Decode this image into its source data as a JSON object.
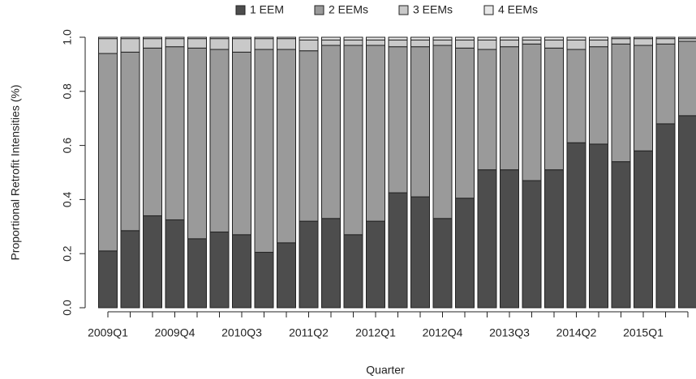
{
  "chart_data": {
    "type": "stacked-bar",
    "x_label": "Quarter",
    "y_label": "Proportional Retrofit Intensities (%)",
    "categories": [
      "2009Q1",
      null,
      null,
      "2009Q4",
      null,
      null,
      "2010Q3",
      null,
      null,
      "2011Q2",
      null,
      null,
      "2012Q1",
      null,
      null,
      "2012Q4",
      null,
      null,
      "2013Q3",
      null,
      null,
      "2014Q2",
      null,
      null,
      "2015Q1",
      null,
      null
    ],
    "series": [
      {
        "name": "1 EEM",
        "color": "#4d4d4d",
        "values": [
          0.21,
          0.285,
          0.34,
          0.325,
          0.255,
          0.28,
          0.27,
          0.205,
          0.24,
          0.32,
          0.33,
          0.27,
          0.32,
          0.425,
          0.41,
          0.33,
          0.405,
          0.51,
          0.51,
          0.47,
          0.51,
          0.61,
          0.605,
          0.54,
          0.58,
          0.68,
          0.71
        ]
      },
      {
        "name": "2 EEMs",
        "color": "#9a9a9a",
        "values": [
          0.73,
          0.66,
          0.62,
          0.64,
          0.705,
          0.675,
          0.675,
          0.75,
          0.715,
          0.63,
          0.64,
          0.7,
          0.65,
          0.54,
          0.555,
          0.64,
          0.555,
          0.445,
          0.455,
          0.505,
          0.45,
          0.345,
          0.36,
          0.435,
          0.39,
          0.295,
          0.275
        ]
      },
      {
        "name": "3 EEMs",
        "color": "#c9c9c9",
        "values": [
          0.055,
          0.05,
          0.035,
          0.03,
          0.035,
          0.04,
          0.05,
          0.04,
          0.04,
          0.04,
          0.02,
          0.02,
          0.02,
          0.025,
          0.025,
          0.02,
          0.03,
          0.035,
          0.025,
          0.015,
          0.03,
          0.035,
          0.025,
          0.02,
          0.025,
          0.02,
          0.01
        ]
      },
      {
        "name": "4 EEMs",
        "color": "#e8e8e8",
        "values": [
          0.005,
          0.005,
          0.005,
          0.005,
          0.005,
          0.005,
          0.005,
          0.005,
          0.005,
          0.01,
          0.01,
          0.01,
          0.01,
          0.01,
          0.01,
          0.01,
          0.01,
          0.01,
          0.01,
          0.01,
          0.01,
          0.01,
          0.01,
          0.005,
          0.005,
          0.005,
          0.005
        ]
      }
    ],
    "ylim": [
      0,
      1
    ],
    "yticks": [
      {
        "value": 0,
        "label": "0.0"
      },
      0.2,
      0.4,
      0.6,
      0.8,
      {
        "value": 1,
        "label": "1.0"
      }
    ],
    "legend": "top"
  }
}
